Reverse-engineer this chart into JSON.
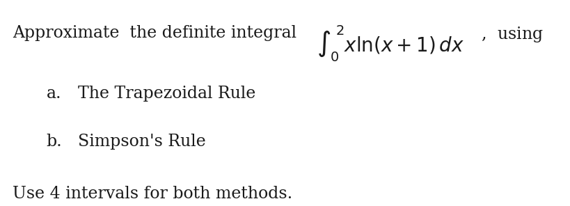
{
  "background_color": "#ffffff",
  "line1_plain": "Approximate  the definite integral",
  "line1_math": "$\\int_0^2 x\\ln(x+1)\\,dx$",
  "line1_suffix": ",  using",
  "line2_label": "a.",
  "line2_text": "The Trapezoidal Rule",
  "line3_label": "b.",
  "line3_text": "Simpson's Rule",
  "line4_text": "Use 4 intervals for both methods.",
  "font_size_main": 17,
  "font_size_items": 17,
  "font_size_last": 17,
  "text_color": "#1a1a1a",
  "fig_width": 8.2,
  "fig_height": 2.96
}
